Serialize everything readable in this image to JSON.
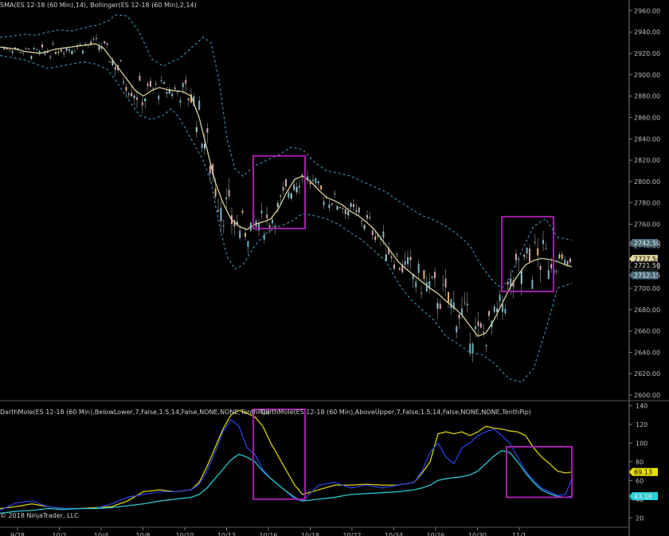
{
  "chart_data": [
    {
      "type": "candlestick",
      "title": "SMA(ES 12-18 (60 Min),14), Bollinger(ES 12-18 (60 Min),2,14)",
      "ylim": [
        2600,
        2970
      ],
      "y_ticks": [
        "2600.00",
        "2620.00",
        "2640.00",
        "2660.00",
        "2680.00",
        "2700.00",
        "2720.00",
        "2740.00",
        "2760.00",
        "2780.00",
        "2800.00",
        "2820.00",
        "2840.00",
        "2860.00",
        "2880.00",
        "2900.00",
        "2920.00",
        "2940.00",
        "2960.00"
      ],
      "x_ticks": [
        "9/28",
        "10/2",
        "10/4",
        "10/8",
        "10/10",
        "10/12",
        "10/16",
        "10/18",
        "10/22",
        "10/24",
        "10/26",
        "10/30",
        "11/1"
      ],
      "price_markers": [
        {
          "label": "2742.50",
          "value": 2742.5,
          "color": "#4b6d7a"
        },
        {
          "label": "2727.54",
          "value": 2727.5,
          "color": "#e0d7a0"
        },
        {
          "label": "2721.50",
          "value": 2721.5,
          "color": "#000000"
        },
        {
          "label": "2712.15",
          "value": 2712.15,
          "color": "#4b6d7a"
        }
      ],
      "series": [
        {
          "name": "SMA",
          "color": "#d8cf9a",
          "x": [
            0,
            10,
            20,
            30,
            40,
            50,
            60,
            70,
            80,
            90,
            100,
            110,
            120,
            130,
            140,
            150,
            160,
            170,
            180,
            190,
            200,
            210,
            220,
            230,
            240,
            250,
            260,
            270,
            280,
            290,
            300,
            310,
            320,
            330,
            340,
            350,
            360,
            370,
            380,
            390,
            400,
            410,
            420,
            430,
            440,
            450,
            460,
            470,
            480,
            490,
            500,
            510,
            520,
            530,
            540,
            550,
            560,
            570,
            580,
            590,
            600,
            610,
            620,
            630,
            640,
            650,
            660,
            670,
            680,
            690,
            700,
            710,
            718
          ],
          "values": [
            2926,
            2925,
            2924,
            2922,
            2921,
            2920,
            2922,
            2924,
            2925,
            2926,
            2927,
            2928,
            2929,
            2925,
            2915,
            2905,
            2895,
            2885,
            2880,
            2885,
            2888,
            2886,
            2885,
            2884,
            2880,
            2860,
            2830,
            2800,
            2780,
            2765,
            2758,
            2755,
            2760,
            2762,
            2765,
            2775,
            2790,
            2802,
            2805,
            2800,
            2792,
            2785,
            2782,
            2778,
            2772,
            2768,
            2762,
            2755,
            2745,
            2735,
            2725,
            2718,
            2712,
            2706,
            2700,
            2695,
            2688,
            2682,
            2675,
            2665,
            2655,
            2658,
            2670,
            2685,
            2700,
            2712,
            2722,
            2726,
            2728,
            2727,
            2725,
            2722,
            2720
          ]
        },
        {
          "name": "Bollinger Upper",
          "color": "#3f88b0",
          "dashed": true,
          "x": [
            0,
            15,
            30,
            45,
            60,
            75,
            90,
            105,
            120,
            135,
            145,
            160,
            175,
            190,
            205,
            215,
            225,
            240,
            255,
            265,
            275,
            285,
            295,
            305,
            320,
            335,
            350,
            365,
            380,
            395,
            410,
            425,
            440,
            455,
            470,
            485,
            500,
            515,
            530,
            545,
            560,
            575,
            590,
            605,
            620,
            630,
            640,
            655,
            670,
            685,
            700,
            718
          ],
          "values": [
            2935,
            2936,
            2938,
            2937,
            2940,
            2942,
            2941,
            2944,
            2946,
            2950,
            2956,
            2955,
            2940,
            2915,
            2908,
            2912,
            2915,
            2925,
            2935,
            2930,
            2895,
            2840,
            2812,
            2805,
            2815,
            2820,
            2825,
            2832,
            2830,
            2818,
            2810,
            2808,
            2805,
            2800,
            2795,
            2790,
            2782,
            2775,
            2768,
            2764,
            2758,
            2750,
            2740,
            2720,
            2706,
            2700,
            2710,
            2735,
            2758,
            2765,
            2748,
            2745
          ]
        },
        {
          "name": "Bollinger Lower",
          "color": "#3f88b0",
          "dashed": true,
          "x": [
            0,
            15,
            30,
            45,
            60,
            75,
            90,
            105,
            120,
            135,
            145,
            160,
            175,
            190,
            205,
            215,
            225,
            240,
            255,
            265,
            275,
            285,
            295,
            305,
            320,
            335,
            350,
            365,
            380,
            395,
            410,
            425,
            440,
            455,
            470,
            485,
            500,
            515,
            530,
            545,
            560,
            575,
            590,
            605,
            620,
            630,
            640,
            655,
            670,
            685,
            700,
            718
          ],
          "values": [
            2918,
            2916,
            2914,
            2910,
            2906,
            2908,
            2910,
            2912,
            2910,
            2905,
            2895,
            2878,
            2862,
            2858,
            2862,
            2868,
            2860,
            2840,
            2820,
            2800,
            2760,
            2730,
            2718,
            2722,
            2740,
            2752,
            2758,
            2762,
            2770,
            2768,
            2765,
            2760,
            2752,
            2745,
            2735,
            2725,
            2705,
            2690,
            2680,
            2670,
            2655,
            2648,
            2640,
            2638,
            2630,
            2622,
            2615,
            2612,
            2625,
            2660,
            2700,
            2705
          ]
        }
      ],
      "highlight_boxes": [
        {
          "x0": 318,
          "x1": 383,
          "y_top": 2824,
          "y_bottom": 2756
        },
        {
          "x0": 630,
          "x1": 695,
          "y_top": 2767,
          "y_bottom": 2697
        }
      ]
    },
    {
      "type": "line",
      "title_left": "DarthMole(ES 12-18 (60 Min),BelowLower,7,False,1.5,14,False,NONE,NONE,TenthPip)",
      "title_right": "DarthMole(ES 12-18 (60 Min),AboveUpper,7,False,1.5,14,False,NONE,NONE,TenthPip)",
      "ylim": [
        10,
        142
      ],
      "y_ticks": [
        "20",
        "40",
        "60",
        "80",
        "100",
        "120",
        "140"
      ],
      "price_markers": [
        {
          "label": "69.13",
          "value": 69.13,
          "color": "#e8e000"
        },
        {
          "label": "43.16",
          "value": 43.16,
          "color": "#2ad0d8"
        }
      ],
      "series": [
        {
          "name": "Upper",
          "color": "#d8d000",
          "x": [
            0,
            20,
            40,
            60,
            80,
            100,
            120,
            140,
            160,
            180,
            200,
            220,
            240,
            250,
            260,
            270,
            280,
            290,
            300,
            310,
            320,
            330,
            340,
            350,
            360,
            370,
            380,
            400,
            420,
            440,
            460,
            480,
            500,
            520,
            530,
            540,
            550,
            560,
            570,
            580,
            590,
            600,
            610,
            620,
            630,
            640,
            650,
            660,
            670,
            680,
            690,
            700,
            710,
            718
          ],
          "values": [
            30,
            32,
            35,
            32,
            30,
            30,
            31,
            32,
            38,
            48,
            50,
            48,
            50,
            58,
            75,
            95,
            115,
            130,
            135,
            132,
            128,
            118,
            100,
            85,
            70,
            55,
            45,
            50,
            55,
            55,
            56,
            55,
            55,
            58,
            68,
            80,
            110,
            112,
            110,
            112,
            108,
            112,
            118,
            116,
            115,
            113,
            112,
            108,
            95,
            85,
            78,
            70,
            68,
            69
          ]
        },
        {
          "name": "Mid",
          "color": "#2840e0",
          "x": [
            0,
            20,
            40,
            60,
            80,
            100,
            120,
            140,
            160,
            180,
            200,
            220,
            240,
            250,
            260,
            270,
            280,
            290,
            300,
            310,
            320,
            330,
            340,
            350,
            360,
            370,
            380,
            400,
            420,
            440,
            460,
            480,
            500,
            520,
            530,
            540,
            550,
            560,
            570,
            580,
            590,
            600,
            610,
            620,
            630,
            640,
            650,
            660,
            670,
            680,
            690,
            700,
            710,
            718
          ],
          "values": [
            28,
            36,
            38,
            32,
            30,
            30,
            30,
            35,
            42,
            45,
            48,
            48,
            50,
            56,
            70,
            90,
            112,
            125,
            118,
            95,
            88,
            72,
            62,
            55,
            48,
            40,
            38,
            55,
            58,
            52,
            55,
            52,
            55,
            58,
            70,
            90,
            100,
            85,
            78,
            95,
            100,
            108,
            112,
            115,
            108,
            100,
            85,
            70,
            60,
            52,
            48,
            44,
            45,
            62
          ]
        },
        {
          "name": "Lower",
          "color": "#28c8d0",
          "x": [
            0,
            20,
            40,
            60,
            80,
            100,
            120,
            140,
            160,
            180,
            200,
            220,
            240,
            250,
            260,
            270,
            280,
            290,
            300,
            310,
            320,
            330,
            340,
            350,
            360,
            370,
            380,
            400,
            420,
            440,
            460,
            480,
            500,
            520,
            530,
            540,
            550,
            560,
            570,
            580,
            590,
            600,
            610,
            620,
            630,
            640,
            650,
            660,
            670,
            680,
            690,
            700,
            710,
            718
          ],
          "values": [
            25,
            27,
            28,
            30,
            29,
            30,
            30,
            31,
            33,
            35,
            38,
            40,
            42,
            45,
            52,
            62,
            72,
            82,
            88,
            85,
            80,
            70,
            62,
            55,
            48,
            42,
            38,
            40,
            42,
            45,
            46,
            47,
            48,
            50,
            52,
            55,
            60,
            62,
            63,
            64,
            66,
            70,
            78,
            86,
            92,
            90,
            80,
            68,
            58,
            50,
            46,
            43,
            42,
            43
          ]
        }
      ],
      "highlight_boxes": [
        {
          "x0": 318,
          "x1": 383,
          "y_top": 136,
          "y_bottom": 40
        },
        {
          "x0": 636,
          "x1": 718,
          "y_top": 96,
          "y_bottom": 42
        }
      ]
    }
  ],
  "footer": {
    "copyright": "© 2018 NinjaTrader, LLC"
  }
}
